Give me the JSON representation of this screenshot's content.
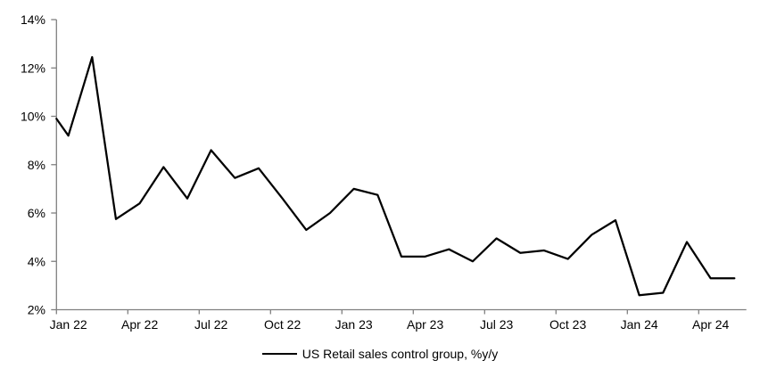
{
  "chart_data": {
    "type": "line",
    "legend": {
      "label": "US Retail sales control group, %y/y",
      "position": "bottom-center"
    },
    "x_axis": {
      "tick_labels": [
        "Jan 22",
        "Apr 22",
        "Jul 22",
        "Oct 22",
        "Jan 23",
        "Apr 23",
        "Jul 23",
        "Oct 23",
        "Jan 24",
        "Apr 24"
      ],
      "tick_every_months": 3,
      "ticks_between_categories": true
    },
    "y_axis": {
      "tick_labels": [
        "2%",
        "4%",
        "6%",
        "8%",
        "10%",
        "12%",
        "14%"
      ],
      "min": 2,
      "max": 14,
      "step": 2,
      "unit": "%"
    },
    "grid": "off",
    "background_color": "#ffffff",
    "axis_color": "#808080",
    "series": [
      {
        "name": "US Retail sales control group, %y/y",
        "color": "#000000",
        "axis_edge_lead_in_value": 9.9,
        "x": [
          "Jan 22",
          "Feb 22",
          "Mar 22",
          "Apr 22",
          "May 22",
          "Jun 22",
          "Jul 22",
          "Aug 22",
          "Sep 22",
          "Oct 22",
          "Nov 22",
          "Dec 22",
          "Jan 23",
          "Feb 23",
          "Mar 23",
          "Apr 23",
          "May 23",
          "Jun 23",
          "Jul 23",
          "Aug 23",
          "Sep 23",
          "Oct 23",
          "Nov 23",
          "Dec 23",
          "Jan 24",
          "Feb 24",
          "Mar 24",
          "Apr 24",
          "May 24"
        ],
        "values": [
          9.2,
          12.45,
          5.75,
          6.4,
          7.9,
          6.6,
          8.6,
          7.45,
          7.85,
          6.6,
          5.3,
          6.0,
          7.0,
          6.75,
          4.2,
          4.2,
          4.5,
          4.0,
          4.95,
          4.35,
          4.45,
          4.1,
          5.1,
          5.7,
          2.6,
          2.7,
          4.8,
          3.3,
          3.3
        ]
      }
    ]
  }
}
